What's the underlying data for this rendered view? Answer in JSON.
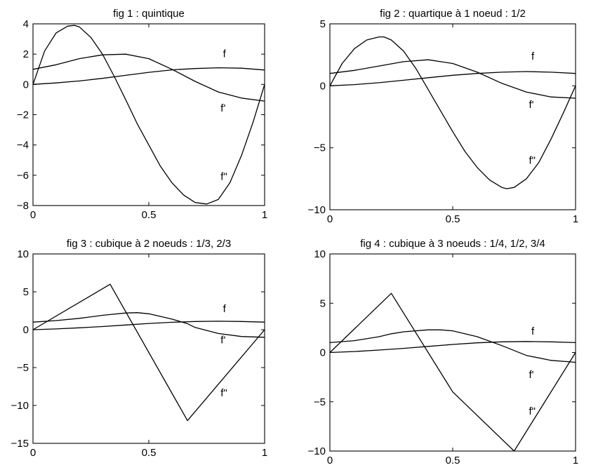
{
  "chart_data": [
    {
      "type": "line",
      "title": "fig 1 : quintique",
      "xlim": [
        0,
        1
      ],
      "ylim": [
        -8,
        4
      ],
      "xticks": [
        0,
        0.5,
        1
      ],
      "xtick_labels": [
        "0",
        "0.5",
        "1"
      ],
      "yticks": [
        -8,
        -6,
        -4,
        -2,
        0,
        2,
        4
      ],
      "ytick_labels": [
        "−8",
        "−6",
        "−4",
        "−2",
        "0",
        "2",
        "4"
      ],
      "grid": false,
      "series": [
        {
          "name": "f",
          "x": [
            0,
            0.1,
            0.2,
            0.3,
            0.4,
            0.5,
            0.6,
            0.7,
            0.8,
            0.9,
            1.0
          ],
          "y": [
            0,
            0.1,
            0.23,
            0.4,
            0.6,
            0.8,
            0.96,
            1.05,
            1.1,
            1.07,
            0.95
          ]
        },
        {
          "name": "f'",
          "x": [
            0,
            0.1,
            0.2,
            0.3,
            0.4,
            0.5,
            0.6,
            0.7,
            0.8,
            0.9,
            1.0
          ],
          "y": [
            1.0,
            1.3,
            1.7,
            1.95,
            2.0,
            1.7,
            1.0,
            0.2,
            -0.5,
            -0.9,
            -1.1
          ]
        },
        {
          "name": "f\"",
          "x": [
            0,
            0.05,
            0.1,
            0.15,
            0.18,
            0.2,
            0.25,
            0.3,
            0.35,
            0.4,
            0.45,
            0.5,
            0.55,
            0.6,
            0.65,
            0.7,
            0.75,
            0.8,
            0.85,
            0.9,
            0.95,
            1.0
          ],
          "y": [
            0,
            2.2,
            3.4,
            3.85,
            3.9,
            3.8,
            3.1,
            2.0,
            0.55,
            -1.0,
            -2.6,
            -4.0,
            -5.4,
            -6.5,
            -7.3,
            -7.8,
            -7.9,
            -7.6,
            -6.5,
            -4.7,
            -2.5,
            0
          ]
        }
      ],
      "annotations": [
        {
          "text": "f",
          "x": 0.82,
          "y": 1.8
        },
        {
          "text": "f'",
          "x": 0.81,
          "y": -1.8
        },
        {
          "text": "f\"",
          "x": 0.81,
          "y": -6.3
        }
      ]
    },
    {
      "type": "line",
      "title": "fig 2 : quartique à 1 noeud : 1/2",
      "xlim": [
        0,
        1
      ],
      "ylim": [
        -10,
        5
      ],
      "xticks": [
        0,
        0.5,
        1
      ],
      "xtick_labels": [
        "0",
        "0.5",
        "1"
      ],
      "yticks": [
        -10,
        -5,
        0,
        5
      ],
      "ytick_labels": [
        "−10",
        "−5",
        "0",
        "5"
      ],
      "grid": false,
      "series": [
        {
          "name": "f",
          "x": [
            0,
            0.1,
            0.2,
            0.3,
            0.4,
            0.5,
            0.6,
            0.7,
            0.8,
            0.9,
            1.0
          ],
          "y": [
            0,
            0.1,
            0.25,
            0.45,
            0.65,
            0.85,
            1.0,
            1.1,
            1.15,
            1.1,
            1.0
          ]
        },
        {
          "name": "f'",
          "x": [
            0,
            0.1,
            0.2,
            0.3,
            0.4,
            0.5,
            0.6,
            0.7,
            0.8,
            0.9,
            1.0
          ],
          "y": [
            1.0,
            1.25,
            1.6,
            1.95,
            2.1,
            1.8,
            1.1,
            0.2,
            -0.5,
            -0.9,
            -1.0
          ]
        },
        {
          "name": "f\"",
          "x": [
            0,
            0.05,
            0.1,
            0.15,
            0.2,
            0.22,
            0.25,
            0.3,
            0.35,
            0.4,
            0.45,
            0.5,
            0.55,
            0.6,
            0.65,
            0.7,
            0.72,
            0.75,
            0.8,
            0.85,
            0.9,
            0.95,
            1.0
          ],
          "y": [
            0,
            1.8,
            3.0,
            3.7,
            3.95,
            3.95,
            3.7,
            2.8,
            1.4,
            -0.3,
            -2.0,
            -3.7,
            -5.3,
            -6.6,
            -7.6,
            -8.2,
            -8.3,
            -8.2,
            -7.5,
            -6.2,
            -4.3,
            -2.2,
            0
          ]
        }
      ],
      "annotations": [
        {
          "text": "f",
          "x": 0.82,
          "y": 2.1
        },
        {
          "text": "f'",
          "x": 0.81,
          "y": -1.8
        },
        {
          "text": "f\"",
          "x": 0.81,
          "y": -6.3
        }
      ]
    },
    {
      "type": "line",
      "title": "fig 3 : cubique à 2 noeuds : 1/3, 2/3",
      "xlim": [
        0,
        1
      ],
      "ylim": [
        -15,
        10
      ],
      "xticks": [
        0,
        0.5,
        1
      ],
      "xtick_labels": [
        "0",
        "0.5",
        "1"
      ],
      "yticks": [
        -15,
        -10,
        -5,
        0,
        5,
        10
      ],
      "ytick_labels": [
        "−15",
        "−10",
        "−5",
        "0",
        "5",
        "10"
      ],
      "grid": false,
      "series": [
        {
          "name": "f",
          "x": [
            0,
            0.1,
            0.2,
            0.3,
            0.4,
            0.5,
            0.6,
            0.7,
            0.8,
            0.9,
            1.0
          ],
          "y": [
            0,
            0.1,
            0.25,
            0.42,
            0.62,
            0.82,
            0.98,
            1.08,
            1.12,
            1.08,
            1.0
          ]
        },
        {
          "name": "f'",
          "x": [
            0,
            0.1,
            0.2,
            0.3,
            0.333,
            0.4,
            0.45,
            0.5,
            0.6,
            0.667,
            0.7,
            0.8,
            0.9,
            1.0
          ],
          "y": [
            1.0,
            1.2,
            1.5,
            1.9,
            2.0,
            2.2,
            2.25,
            2.1,
            1.4,
            0.8,
            0.3,
            -0.5,
            -0.9,
            -1.0
          ]
        },
        {
          "name": "f\"",
          "x": [
            0,
            0.333,
            0.667,
            1.0
          ],
          "y": [
            0,
            6,
            -12,
            0
          ]
        }
      ],
      "annotations": [
        {
          "text": "f",
          "x": 0.82,
          "y": 2.3
        },
        {
          "text": "f'",
          "x": 0.81,
          "y": -1.8
        },
        {
          "text": "f\"",
          "x": 0.81,
          "y": -8.8
        }
      ]
    },
    {
      "type": "line",
      "title": "fig 4 : cubique à 3 noeuds : 1/4, 1/2, 3/4",
      "xlim": [
        0,
        1
      ],
      "ylim": [
        -10,
        10
      ],
      "xticks": [
        0,
        0.5,
        1
      ],
      "xtick_labels": [
        "0",
        "0.5",
        "1"
      ],
      "yticks": [
        -10,
        -5,
        0,
        5,
        10
      ],
      "ytick_labels": [
        "−10",
        "−5",
        "0",
        "5",
        "10"
      ],
      "grid": false,
      "series": [
        {
          "name": "f",
          "x": [
            0,
            0.1,
            0.2,
            0.3,
            0.4,
            0.5,
            0.6,
            0.7,
            0.8,
            0.9,
            1.0
          ],
          "y": [
            0,
            0.1,
            0.25,
            0.42,
            0.62,
            0.82,
            0.98,
            1.08,
            1.12,
            1.08,
            1.0
          ]
        },
        {
          "name": "f'",
          "x": [
            0,
            0.1,
            0.2,
            0.25,
            0.3,
            0.4,
            0.45,
            0.5,
            0.6,
            0.7,
            0.75,
            0.8,
            0.9,
            1.0
          ],
          "y": [
            1.0,
            1.2,
            1.6,
            1.9,
            2.1,
            2.3,
            2.3,
            2.2,
            1.6,
            0.7,
            0.2,
            -0.3,
            -0.8,
            -1.0
          ]
        },
        {
          "name": "f\"",
          "x": [
            0,
            0.25,
            0.5,
            0.75,
            1.0
          ],
          "y": [
            0,
            6,
            -4,
            -10,
            0
          ]
        }
      ],
      "annotations": [
        {
          "text": "f",
          "x": 0.82,
          "y": 1.8
        },
        {
          "text": "f'",
          "x": 0.81,
          "y": -2.6
        },
        {
          "text": "f\"",
          "x": 0.81,
          "y": -6.3
        }
      ]
    }
  ]
}
